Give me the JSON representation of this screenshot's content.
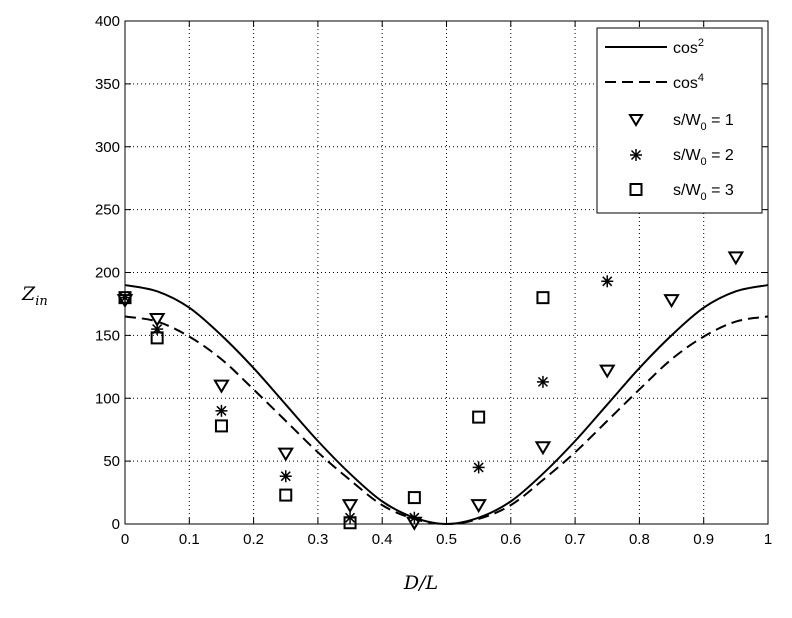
{
  "chart_data": {
    "type": "line",
    "xlabel": "D/L",
    "ylabel": "Z_in",
    "ylabel_main": "Z",
    "ylabel_sub": "in",
    "xlim": [
      0,
      1
    ],
    "ylim": [
      0,
      400
    ],
    "xticks": [
      0,
      0.1,
      0.2,
      0.3,
      0.4,
      0.5,
      0.6,
      0.7,
      0.8,
      0.9,
      1
    ],
    "xtick_labels": [
      "0",
      "0.1",
      "0.2",
      "0.3",
      "0.4",
      "0.5",
      "0.6",
      "0.7",
      "0.8",
      "0.9",
      "1"
    ],
    "yticks": [
      0,
      50,
      100,
      150,
      200,
      250,
      300,
      350,
      400
    ],
    "ytick_labels": [
      "0",
      "50",
      "100",
      "150",
      "200",
      "250",
      "300",
      "350",
      "400"
    ],
    "grid": true,
    "legend_position": "top-right",
    "legend": [
      {
        "label": "cos",
        "sup": "2",
        "style": "solid-line"
      },
      {
        "label": "cos",
        "sup": "4",
        "style": "dashed-line"
      },
      {
        "label": "s/W",
        "sub": "0",
        "suffix": " = 1",
        "style": "triangle-marker"
      },
      {
        "label": "s/W",
        "sub": "0",
        "suffix": " = 2",
        "style": "star-marker"
      },
      {
        "label": "s/W",
        "sub": "0",
        "suffix": " = 3",
        "style": "square-marker"
      }
    ],
    "series": [
      {
        "name": "cos^2",
        "kind": "curve",
        "style": "solid",
        "x": [
          0,
          0.05,
          0.1,
          0.15,
          0.2,
          0.25,
          0.3,
          0.35,
          0.4,
          0.45,
          0.5,
          0.55,
          0.6,
          0.65,
          0.7,
          0.75,
          0.8,
          0.85,
          0.9,
          0.95,
          1
        ],
        "y": [
          190,
          185,
          172,
          150,
          124,
          95,
          66,
          40,
          18,
          5,
          0,
          5,
          18,
          40,
          66,
          95,
          124,
          150,
          172,
          185,
          190
        ]
      },
      {
        "name": "cos^4",
        "kind": "curve",
        "style": "dashed",
        "x": [
          0,
          0.05,
          0.1,
          0.15,
          0.2,
          0.25,
          0.3,
          0.35,
          0.4,
          0.45,
          0.5,
          0.55,
          0.6,
          0.65,
          0.7,
          0.75,
          0.8,
          0.85,
          0.9,
          0.95,
          1
        ],
        "y": [
          165,
          161,
          149,
          131,
          107,
          82,
          57,
          35,
          15,
          4,
          0,
          4,
          15,
          35,
          57,
          82,
          107,
          131,
          149,
          161,
          165
        ]
      },
      {
        "name": "s/W0 = 1",
        "kind": "markers",
        "marker": "triangle",
        "x": [
          0,
          0.05,
          0.15,
          0.25,
          0.35,
          0.45,
          0.55,
          0.65,
          0.75,
          0.85,
          0.95
        ],
        "y": [
          178,
          163,
          110,
          56,
          15,
          1,
          15,
          61,
          122,
          178,
          212
        ]
      },
      {
        "name": "s/W0 = 2",
        "kind": "markers",
        "marker": "star",
        "x": [
          0,
          0.05,
          0.15,
          0.25,
          0.35,
          0.45,
          0.55,
          0.65,
          0.75
        ],
        "y": [
          180,
          155,
          90,
          38,
          5,
          5,
          45,
          113,
          193
        ]
      },
      {
        "name": "s/W0 = 3",
        "kind": "markers",
        "marker": "square",
        "x": [
          0,
          0.05,
          0.15,
          0.25,
          0.35,
          0.45,
          0.55,
          0.65
        ],
        "y": [
          180,
          148,
          78,
          23,
          1,
          21,
          85,
          180
        ]
      }
    ]
  }
}
